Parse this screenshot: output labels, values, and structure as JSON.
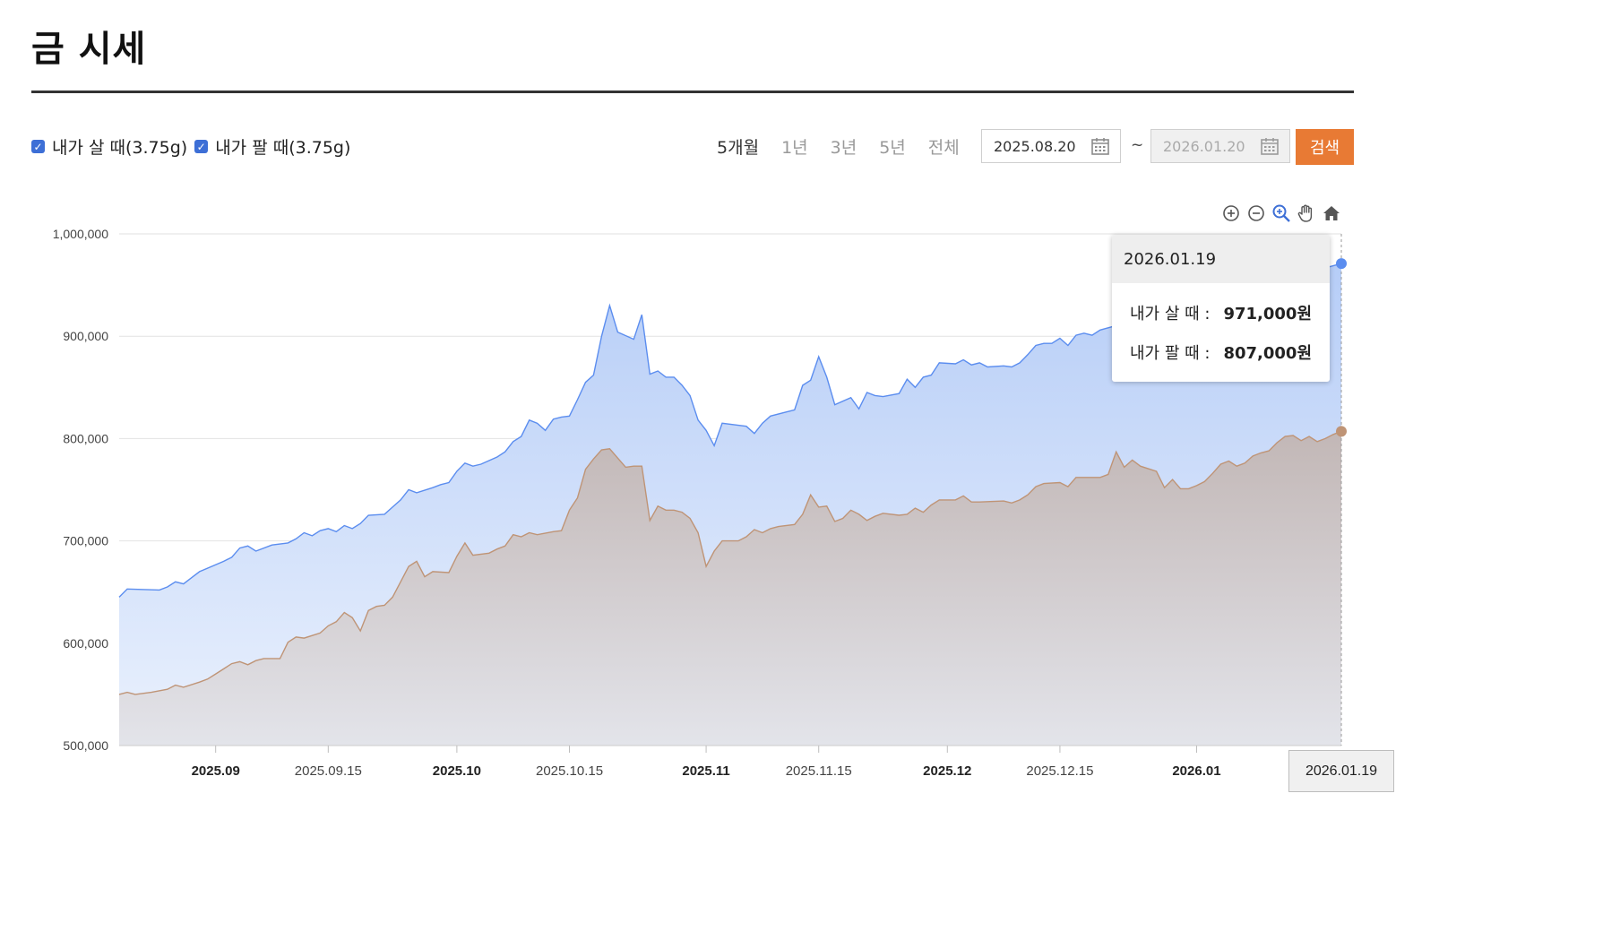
{
  "page": {
    "title": "금 시세"
  },
  "legend": {
    "items": [
      {
        "label": "내가 살 때(3.75g)",
        "checked": true
      },
      {
        "label": "내가 팔 때(3.75g)",
        "checked": true
      }
    ]
  },
  "period_tabs": [
    {
      "label": "5개월",
      "active": true
    },
    {
      "label": "1년",
      "active": false
    },
    {
      "label": "3년",
      "active": false
    },
    {
      "label": "5년",
      "active": false
    },
    {
      "label": "전체",
      "active": false
    }
  ],
  "date_range": {
    "start": "2025.08.20",
    "separator": "~",
    "end": "2026.01.20"
  },
  "search_button": "검색",
  "toolbar_icons": [
    "zoom-in-icon",
    "zoom-out-icon",
    "magnify-icon",
    "pan-hand-icon",
    "home-icon"
  ],
  "colors": {
    "buy": "#5b8def",
    "sell": "#bf9476",
    "accent": "#e87a34"
  },
  "tooltip": {
    "date": "2026.01.19",
    "rows": [
      {
        "label": "내가 살 때 :",
        "value": "971,000원"
      },
      {
        "label": "내가 팔 때 :",
        "value": "807,000원"
      }
    ]
  },
  "crosshair_label": "2026.01.19",
  "chart_data": {
    "type": "area",
    "title": "",
    "xlabel": "",
    "ylabel": "",
    "ylim": [
      500000,
      1000000
    ],
    "x_range": [
      "2025.08.20",
      "2026.01.19"
    ],
    "y_ticks": [
      "500,000",
      "600,000",
      "700,000",
      "800,000",
      "900,000",
      "1,000,000"
    ],
    "x_ticks": [
      {
        "label": "2025.09",
        "date": "2025.09.01",
        "bold": true
      },
      {
        "label": "2025.09.15",
        "date": "2025.09.15",
        "bold": false
      },
      {
        "label": "2025.10",
        "date": "2025.10.01",
        "bold": true
      },
      {
        "label": "2025.10.15",
        "date": "2025.10.15",
        "bold": false
      },
      {
        "label": "2025.11",
        "date": "2025.11.01",
        "bold": true
      },
      {
        "label": "2025.11.15",
        "date": "2025.11.15",
        "bold": false
      },
      {
        "label": "2025.12",
        "date": "2025.12.01",
        "bold": true
      },
      {
        "label": "2025.12.15",
        "date": "2025.12.15",
        "bold": false
      },
      {
        "label": "2026.01",
        "date": "2026.01.01",
        "bold": true
      }
    ],
    "grid": true,
    "series": [
      {
        "name": "내가 살 때(3.75g)",
        "color": "#5b8def",
        "points": [
          [
            "2025.08.20",
            645000
          ],
          [
            "2025.08.21",
            653000
          ],
          [
            "2025.08.25",
            652000
          ],
          [
            "2025.08.26",
            655000
          ],
          [
            "2025.08.27",
            660000
          ],
          [
            "2025.08.28",
            658000
          ],
          [
            "2025.08.29",
            664000
          ],
          [
            "2025.08.30",
            670000
          ],
          [
            "2025.09.02",
            680000
          ],
          [
            "2025.09.03",
            684000
          ],
          [
            "2025.09.04",
            693000
          ],
          [
            "2025.09.05",
            695000
          ],
          [
            "2025.09.06",
            690000
          ],
          [
            "2025.09.08",
            696000
          ],
          [
            "2025.09.10",
            698000
          ],
          [
            "2025.09.11",
            702000
          ],
          [
            "2025.09.12",
            708000
          ],
          [
            "2025.09.13",
            705000
          ],
          [
            "2025.09.14",
            710000
          ],
          [
            "2025.09.15",
            712000
          ],
          [
            "2025.09.16",
            709000
          ],
          [
            "2025.09.17",
            715000
          ],
          [
            "2025.09.18",
            712000
          ],
          [
            "2025.09.19",
            717000
          ],
          [
            "2025.09.20",
            725000
          ],
          [
            "2025.09.22",
            726000
          ],
          [
            "2025.09.23",
            733000
          ],
          [
            "2025.09.24",
            740000
          ],
          [
            "2025.09.25",
            750000
          ],
          [
            "2025.09.26",
            747000
          ],
          [
            "2025.09.28",
            752000
          ],
          [
            "2025.09.29",
            755000
          ],
          [
            "2025.09.30",
            757000
          ],
          [
            "2025.10.01",
            768000
          ],
          [
            "2025.10.02",
            776000
          ],
          [
            "2025.10.03",
            773000
          ],
          [
            "2025.10.04",
            775000
          ],
          [
            "2025.10.06",
            782000
          ],
          [
            "2025.10.07",
            787000
          ],
          [
            "2025.10.08",
            797000
          ],
          [
            "2025.10.09",
            802000
          ],
          [
            "2025.10.10",
            818000
          ],
          [
            "2025.10.11",
            815000
          ],
          [
            "2025.10.12",
            808000
          ],
          [
            "2025.10.13",
            819000
          ],
          [
            "2025.10.14",
            821000
          ],
          [
            "2025.10.15",
            822000
          ],
          [
            "2025.10.16",
            838000
          ],
          [
            "2025.10.17",
            855000
          ],
          [
            "2025.10.18",
            862000
          ],
          [
            "2025.10.19",
            900000
          ],
          [
            "2025.10.20",
            930000
          ],
          [
            "2025.10.21",
            904000
          ],
          [
            "2025.10.23",
            897000
          ],
          [
            "2025.10.24",
            921000
          ],
          [
            "2025.10.25",
            863000
          ],
          [
            "2025.10.26",
            866000
          ],
          [
            "2025.10.27",
            860000
          ],
          [
            "2025.10.28",
            860000
          ],
          [
            "2025.10.29",
            852000
          ],
          [
            "2025.10.30",
            842000
          ],
          [
            "2025.10.31",
            818000
          ],
          [
            "2025.11.01",
            808000
          ],
          [
            "2025.11.02",
            793000
          ],
          [
            "2025.11.03",
            815000
          ],
          [
            "2025.11.05",
            813000
          ],
          [
            "2025.11.06",
            812000
          ],
          [
            "2025.11.07",
            805000
          ],
          [
            "2025.11.08",
            815000
          ],
          [
            "2025.11.09",
            822000
          ],
          [
            "2025.11.11",
            826000
          ],
          [
            "2025.11.12",
            828000
          ],
          [
            "2025.11.13",
            852000
          ],
          [
            "2025.11.14",
            857000
          ],
          [
            "2025.11.15",
            880000
          ],
          [
            "2025.11.16",
            860000
          ],
          [
            "2025.11.17",
            833000
          ],
          [
            "2025.11.19",
            840000
          ],
          [
            "2025.11.20",
            829000
          ],
          [
            "2025.11.21",
            845000
          ],
          [
            "2025.11.22",
            842000
          ],
          [
            "2025.11.23",
            841000
          ],
          [
            "2025.11.25",
            844000
          ],
          [
            "2025.11.26",
            858000
          ],
          [
            "2025.11.27",
            850000
          ],
          [
            "2025.11.28",
            860000
          ],
          [
            "2025.11.29",
            862000
          ],
          [
            "2025.11.30",
            874000
          ],
          [
            "2025.12.02",
            873000
          ],
          [
            "2025.12.03",
            877000
          ],
          [
            "2025.12.04",
            872000
          ],
          [
            "2025.12.05",
            874000
          ],
          [
            "2025.12.06",
            870000
          ],
          [
            "2025.12.08",
            871000
          ],
          [
            "2025.12.09",
            870000
          ],
          [
            "2025.12.10",
            874000
          ],
          [
            "2025.12.11",
            882000
          ],
          [
            "2025.12.12",
            891000
          ],
          [
            "2025.12.13",
            893000
          ],
          [
            "2025.12.14",
            893000
          ],
          [
            "2025.12.15",
            898000
          ],
          [
            "2025.12.16",
            891000
          ],
          [
            "2025.12.17",
            901000
          ],
          [
            "2025.12.18",
            903000
          ],
          [
            "2025.12.19",
            901000
          ],
          [
            "2025.12.20",
            906000
          ],
          [
            "2026.01.19",
            971000
          ]
        ]
      },
      {
        "name": "내가 팔 때(3.75g)",
        "color": "#bf9476",
        "points": [
          [
            "2025.08.20",
            550000
          ],
          [
            "2025.08.21",
            552000
          ],
          [
            "2025.08.22",
            550000
          ],
          [
            "2025.08.24",
            552000
          ],
          [
            "2025.08.26",
            555000
          ],
          [
            "2025.08.27",
            559000
          ],
          [
            "2025.08.28",
            557000
          ],
          [
            "2025.08.30",
            562000
          ],
          [
            "2025.08.31",
            565000
          ],
          [
            "2025.09.01",
            570000
          ],
          [
            "2025.09.02",
            575000
          ],
          [
            "2025.09.03",
            580000
          ],
          [
            "2025.09.04",
            582000
          ],
          [
            "2025.09.05",
            579000
          ],
          [
            "2025.09.06",
            583000
          ],
          [
            "2025.09.07",
            585000
          ],
          [
            "2025.09.09",
            585000
          ],
          [
            "2025.09.10",
            601000
          ],
          [
            "2025.09.11",
            606000
          ],
          [
            "2025.09.12",
            605000
          ],
          [
            "2025.09.14",
            610000
          ],
          [
            "2025.09.15",
            617000
          ],
          [
            "2025.09.16",
            621000
          ],
          [
            "2025.09.17",
            630000
          ],
          [
            "2025.09.18",
            625000
          ],
          [
            "2025.09.19",
            612000
          ],
          [
            "2025.09.20",
            632000
          ],
          [
            "2025.09.21",
            636000
          ],
          [
            "2025.09.22",
            637000
          ],
          [
            "2025.09.23",
            645000
          ],
          [
            "2025.09.24",
            660000
          ],
          [
            "2025.09.25",
            675000
          ],
          [
            "2025.09.26",
            680000
          ],
          [
            "2025.09.27",
            665000
          ],
          [
            "2025.09.28",
            670000
          ],
          [
            "2025.09.30",
            669000
          ],
          [
            "2025.10.01",
            685000
          ],
          [
            "2025.10.02",
            698000
          ],
          [
            "2025.10.03",
            686000
          ],
          [
            "2025.10.05",
            688000
          ],
          [
            "2025.10.06",
            692000
          ],
          [
            "2025.10.07",
            695000
          ],
          [
            "2025.10.08",
            706000
          ],
          [
            "2025.10.09",
            704000
          ],
          [
            "2025.10.10",
            708000
          ],
          [
            "2025.10.11",
            706000
          ],
          [
            "2025.10.13",
            709000
          ],
          [
            "2025.10.14",
            710000
          ],
          [
            "2025.10.15",
            730000
          ],
          [
            "2025.10.16",
            742000
          ],
          [
            "2025.10.17",
            770000
          ],
          [
            "2025.10.18",
            780000
          ],
          [
            "2025.10.19",
            789000
          ],
          [
            "2025.10.20",
            790000
          ],
          [
            "2025.10.22",
            772000
          ],
          [
            "2025.10.23",
            773000
          ],
          [
            "2025.10.24",
            773000
          ],
          [
            "2025.10.25",
            720000
          ],
          [
            "2025.10.26",
            734000
          ],
          [
            "2025.10.27",
            730000
          ],
          [
            "2025.10.28",
            730000
          ],
          [
            "2025.10.29",
            728000
          ],
          [
            "2025.10.30",
            722000
          ],
          [
            "2025.10.31",
            708000
          ],
          [
            "2025.11.01",
            675000
          ],
          [
            "2025.11.02",
            690000
          ],
          [
            "2025.11.03",
            700000
          ],
          [
            "2025.11.05",
            700000
          ],
          [
            "2025.11.06",
            704000
          ],
          [
            "2025.11.07",
            711000
          ],
          [
            "2025.11.08",
            708000
          ],
          [
            "2025.11.09",
            712000
          ],
          [
            "2025.11.10",
            714000
          ],
          [
            "2025.11.12",
            716000
          ],
          [
            "2025.11.13",
            726000
          ],
          [
            "2025.11.14",
            745000
          ],
          [
            "2025.11.15",
            733000
          ],
          [
            "2025.11.16",
            734000
          ],
          [
            "2025.11.17",
            719000
          ],
          [
            "2025.11.18",
            722000
          ],
          [
            "2025.11.19",
            730000
          ],
          [
            "2025.11.20",
            726000
          ],
          [
            "2025.11.21",
            720000
          ],
          [
            "2025.11.22",
            724000
          ],
          [
            "2025.11.23",
            727000
          ],
          [
            "2025.11.25",
            725000
          ],
          [
            "2025.11.26",
            726000
          ],
          [
            "2025.11.27",
            732000
          ],
          [
            "2025.11.28",
            728000
          ],
          [
            "2025.11.29",
            735000
          ],
          [
            "2025.11.30",
            740000
          ],
          [
            "2025.12.02",
            740000
          ],
          [
            "2025.12.03",
            744000
          ],
          [
            "2025.12.04",
            738000
          ],
          [
            "2025.12.05",
            738000
          ],
          [
            "2025.12.08",
            739000
          ],
          [
            "2025.12.09",
            737000
          ],
          [
            "2025.12.10",
            740000
          ],
          [
            "2025.12.11",
            745000
          ],
          [
            "2025.12.12",
            753000
          ],
          [
            "2025.12.13",
            756000
          ],
          [
            "2025.12.15",
            757000
          ],
          [
            "2025.12.16",
            753000
          ],
          [
            "2025.12.17",
            762000
          ],
          [
            "2025.12.18",
            762000
          ],
          [
            "2025.12.20",
            762000
          ],
          [
            "2025.12.21",
            765000
          ],
          [
            "2025.12.22",
            787000
          ],
          [
            "2025.12.23",
            772000
          ],
          [
            "2025.12.24",
            779000
          ],
          [
            "2025.12.25",
            773000
          ],
          [
            "2025.12.27",
            768000
          ],
          [
            "2025.12.28",
            752000
          ],
          [
            "2025.12.29",
            760000
          ],
          [
            "2025.12.30",
            751000
          ],
          [
            "2025.12.31",
            751000
          ],
          [
            "2026.01.01",
            754000
          ],
          [
            "2026.01.02",
            758000
          ],
          [
            "2026.01.03",
            766000
          ],
          [
            "2026.01.04",
            775000
          ],
          [
            "2026.01.05",
            778000
          ],
          [
            "2026.01.06",
            773000
          ],
          [
            "2026.01.07",
            776000
          ],
          [
            "2026.01.08",
            783000
          ],
          [
            "2026.01.09",
            786000
          ],
          [
            "2026.01.10",
            788000
          ],
          [
            "2026.01.11",
            796000
          ],
          [
            "2026.01.12",
            802000
          ],
          [
            "2026.01.13",
            803000
          ],
          [
            "2026.01.14",
            798000
          ],
          [
            "2026.01.15",
            802000
          ],
          [
            "2026.01.16",
            797000
          ],
          [
            "2026.01.17",
            800000
          ],
          [
            "2026.01.18",
            804000
          ],
          [
            "2026.01.19",
            807000
          ]
        ]
      }
    ]
  }
}
